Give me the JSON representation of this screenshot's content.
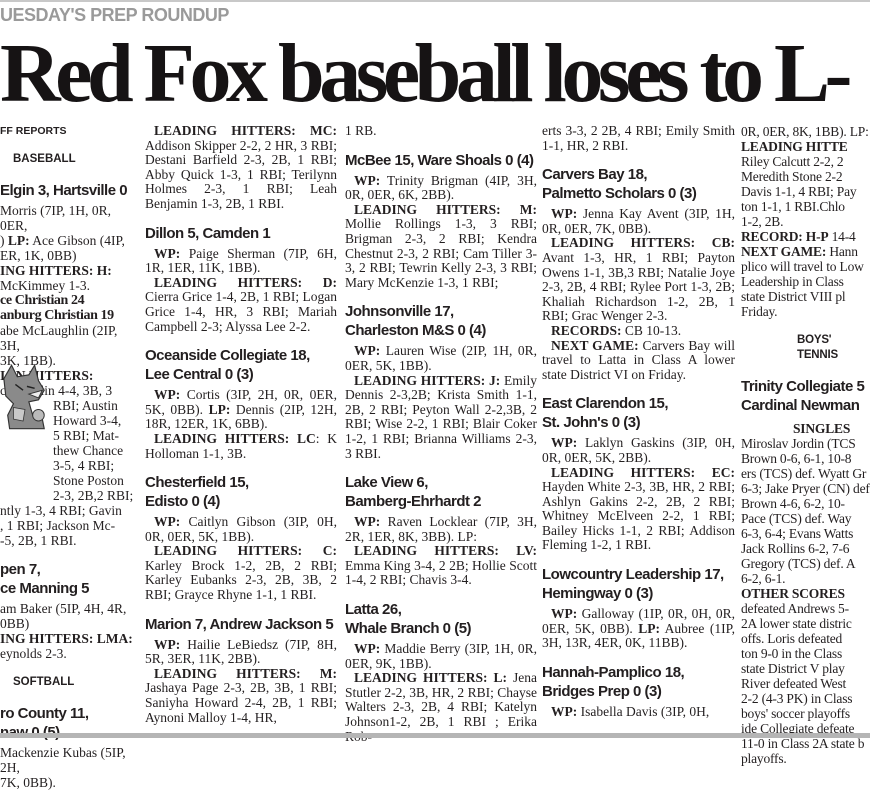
{
  "kicker": "UESDAY'S PREP ROUNDUP",
  "headline": "Red Fox baseball loses to L-",
  "col1": {
    "mascot": "fox-mascot",
    "lines": [
      {
        "kind": "kicker",
        "runs": [
          {
            "t": "FF REPORTS"
          }
        ]
      },
      {
        "kind": "section",
        "runs": [
          {
            "t": "BASEBALL"
          }
        ]
      },
      {
        "kind": "head",
        "runs": [
          {
            "t": "Elgin 3, Hartsville 0"
          }
        ]
      },
      {
        "kind": "text",
        "runs": [
          {
            "t": "Morris (7IP, 1H, 0R, 0ER,"
          }
        ]
      },
      {
        "kind": "text",
        "runs": [
          {
            "t": ") "
          },
          {
            "b": "LP:"
          },
          {
            "t": " Ace Gibson (4IP,"
          }
        ]
      },
      {
        "kind": "text",
        "runs": [
          {
            "t": "ER, 1K, 0BB)"
          }
        ]
      },
      {
        "kind": "text",
        "runs": [
          {
            "b": "ING   HITTERS:   H:"
          }
        ]
      },
      {
        "kind": "text",
        "runs": [
          {
            "t": "McKimmey 1-3."
          }
        ]
      },
      {
        "kind": "head2",
        "runs": [
          {
            "t": "ce Christian 24"
          }
        ]
      },
      {
        "kind": "head2",
        "runs": [
          {
            "t": "anburg Christian 19"
          }
        ]
      },
      {
        "kind": "text",
        "runs": [
          {
            "t": "abe McLaughlin (2IP, 3H,"
          }
        ]
      },
      {
        "kind": "text",
        "runs": [
          {
            "t": "3K, 1BB)."
          }
        ]
      },
      {
        "kind": "text",
        "runs": [
          {
            "b": "IGN         HITTERS:"
          }
        ]
      },
      {
        "kind": "text",
        "runs": [
          {
            "t": "cLaughlin 4-4, 3B, 3"
          }
        ]
      },
      {
        "kind": "fox",
        "runs": [
          {
            "t": "RBI;  Austin"
          }
        ]
      },
      {
        "kind": "fox",
        "runs": [
          {
            "t": "Howard 3-4,"
          }
        ]
      },
      {
        "kind": "fox",
        "runs": [
          {
            "t": "5 RBI; Mat-"
          }
        ]
      },
      {
        "kind": "fox",
        "runs": [
          {
            "t": "thew Chance"
          }
        ]
      },
      {
        "kind": "fox",
        "runs": [
          {
            "t": "3-5,  4  RBI;"
          }
        ]
      },
      {
        "kind": "fox",
        "runs": [
          {
            "t": "Stone Poston"
          }
        ]
      },
      {
        "kind": "fox",
        "runs": [
          {
            "t": "2-3, 2B,2 RBI;"
          }
        ]
      },
      {
        "kind": "text",
        "runs": [
          {
            "t": "ntly 1-3, 4 RBI; Gavin"
          }
        ]
      },
      {
        "kind": "text",
        "runs": [
          {
            "t": ", 1 RBI; Jackson Mc-"
          }
        ]
      },
      {
        "kind": "text",
        "runs": [
          {
            "t": "-5, 2B, 1 RBI."
          }
        ]
      },
      {
        "kind": "head",
        "runs": [
          {
            "t": "pen 7,"
          }
        ]
      },
      {
        "kind": "head",
        "runs": [
          {
            "t": "ce Manning 5"
          }
        ]
      },
      {
        "kind": "text",
        "runs": [
          {
            "t": "am Baker (5IP, 4H, 4R,"
          }
        ]
      },
      {
        "kind": "text",
        "runs": [
          {
            "t": "0BB)"
          }
        ]
      },
      {
        "kind": "text",
        "runs": [
          {
            "b": "ING HITTERS: LMA:"
          }
        ]
      },
      {
        "kind": "text",
        "runs": [
          {
            "t": "eynolds 2-3."
          }
        ]
      },
      {
        "kind": "section",
        "runs": [
          {
            "t": "SOFTBALL"
          }
        ]
      },
      {
        "kind": "head",
        "runs": [
          {
            "t": "ro County 11,"
          }
        ]
      },
      {
        "kind": "head",
        "runs": [
          {
            "t": "naw 0 (5)"
          }
        ]
      },
      {
        "kind": "text",
        "runs": [
          {
            "t": "Mackenzie Kubas (5IP, 2H,"
          }
        ]
      },
      {
        "kind": "text",
        "runs": [
          {
            "t": " 7K, 0BB)."
          }
        ]
      }
    ]
  },
  "columns": [
    {
      "blocks": [
        {
          "type": "p",
          "runs": [
            {
              "b": "LEADING HITTERS: MC:"
            },
            {
              "t": " Addison Skipper 2-2, 2 HR, 3 RBI; Destani Barfield 2-3, 2B, 1 RBI; Abby Quick 1-3, 1 RBI; Terilynn Holmes 2-3, 1 RBI; Leah Benjamin 1-3, 2B, 1 RBI."
            }
          ]
        },
        {
          "type": "head",
          "lines": [
            "Dillon 5, Camden 1"
          ]
        },
        {
          "type": "p",
          "runs": [
            {
              "b": "WP:"
            },
            {
              "t": " Paige Sherman (7IP, 6H, 1R, 1ER, 11K, 1BB)."
            }
          ]
        },
        {
          "type": "p",
          "runs": [
            {
              "b": "LEADING HITTERS: D:"
            },
            {
              "t": " Cierra Grice 1-4, 2B, 1 RBI; Logan Grice 1-4, HR, 3 RBI; Mariah Campbell 2-3; Alyssa Lee 2-2."
            }
          ]
        },
        {
          "type": "head",
          "lines": [
            "Oceanside Collegiate 18,",
            "Lee Central 0 (3)"
          ]
        },
        {
          "type": "p",
          "runs": [
            {
              "b": "WP:"
            },
            {
              "t": " Cortis (3IP, 2H, 0R, 0ER, 5K, 0BB). "
            },
            {
              "b": "LP:"
            },
            {
              "t": " Dennis (2IP, 12H, 18R, 12ER, 1K, 6BB)."
            }
          ]
        },
        {
          "type": "p",
          "runs": [
            {
              "b": "LEADING HITTERS: LC"
            },
            {
              "t": ": K Holloman 1-1, 3B."
            }
          ]
        },
        {
          "type": "head",
          "lines": [
            "Chesterfield 15,",
            "Edisto 0 (4)"
          ]
        },
        {
          "type": "p",
          "runs": [
            {
              "b": "WP:"
            },
            {
              "t": " Caitlyn Gibson (3IP, 0H, 0R, 0ER, 5K, 1BB)."
            }
          ]
        },
        {
          "type": "p",
          "runs": [
            {
              "b": "LEADING HITTERS: C:"
            },
            {
              "t": " Karley Brock 1-2, 2B, 2 RBI; Karley Eubanks 2-3, 2B, 3B, 2 RBI; Grayce Rhyne 1-1, 1 RBI."
            }
          ]
        },
        {
          "type": "head",
          "lines": [
            "Marion 7, Andrew Jackson 5"
          ]
        },
        {
          "type": "p",
          "runs": [
            {
              "b": "WP:"
            },
            {
              "t": " Hailie LeBiedsz (7IP, 8H, 5R, 3ER, 11K, 2BB)."
            }
          ]
        },
        {
          "type": "p",
          "runs": [
            {
              "b": "LEADING HITTERS: M:"
            },
            {
              "t": " Jashaya Page 2-3, 2B, 3B, 1 RBI; Saniyha Howard 2-4, 2B, 1 RBI; Aynoni Malloy 1-4, HR,"
            }
          ]
        }
      ]
    },
    {
      "blocks": [
        {
          "type": "p",
          "cont": true,
          "runs": [
            {
              "t": "1 RB."
            }
          ]
        },
        {
          "type": "head",
          "lines": [
            "McBee 15, Ware Shoals 0 (4)"
          ]
        },
        {
          "type": "p",
          "runs": [
            {
              "b": "WP:"
            },
            {
              "t": " Trinity Brigman (4IP, 3H, 0R, 0ER, 6K, 2BB)."
            }
          ]
        },
        {
          "type": "p",
          "runs": [
            {
              "b": "LEADING HITTERS: M:"
            },
            {
              "t": " Mollie Rollings 1-3, 3 RBI; Brigman 2-3, 2 RBI; Kendra Chestnut 2-3, 2 RBI; Cam Tiller 3-3, 2 RBI; Tewrin Kelly 2-3, 3 RBI; Mary McKenzie 1-3, 1 RBI;"
            }
          ]
        },
        {
          "type": "head",
          "lines": [
            "Johnsonville 17,",
            "Charleston M&S 0 (4)"
          ]
        },
        {
          "type": "p",
          "runs": [
            {
              "b": "WP:"
            },
            {
              "t": " Lauren Wise (2IP, 1H, 0R, 0ER, 5K, 1BB)."
            }
          ]
        },
        {
          "type": "p",
          "runs": [
            {
              "b": "LEADING HITTERS: J:"
            },
            {
              "t": " Emily Dennis 2-3,2B; Krista Smith 1-1, 2B, 2 RBI; Peyton Wall 2-2,3B, 2 RBI; Wise 2-2, 1 RBI; Blair Coker 1-2, 1 RBI; Brianna Williams 2-3, 3 RBI."
            }
          ]
        },
        {
          "type": "head",
          "lines": [
            "Lake View 6,",
            "Bamberg-Ehrhardt 2"
          ]
        },
        {
          "type": "p",
          "runs": [
            {
              "b": "WP:"
            },
            {
              "t": " Raven Locklear (7IP, 3H, 2R, 1ER, 8K, 3BB). LP:"
            }
          ]
        },
        {
          "type": "p",
          "runs": [
            {
              "b": "LEADING HITTERS: LV:"
            },
            {
              "t": " Emma King 3-4, 2 2B; Hollie Scott 1-4, 2 RBI; Chavis 3-4."
            }
          ]
        },
        {
          "type": "head",
          "lines": [
            "Latta 26,",
            "Whale Branch 0 (5)"
          ]
        },
        {
          "type": "p",
          "runs": [
            {
              "b": "WP:"
            },
            {
              "t": " Maddie Berry (3IP, 1H, 0R, 0ER, 9K, 1BB)."
            }
          ]
        },
        {
          "type": "p",
          "runs": [
            {
              "b": "LEADING HITTERS: L:"
            },
            {
              "t": " Jena Stutler 2-2, 3B, HR, 2 RBI; Chayse Walters 2-3, 2B, 4 RBI; Katelyn Johnson1-2, 2B, 1 RBI ; Erika Rob-"
            }
          ]
        }
      ]
    },
    {
      "blocks": [
        {
          "type": "p",
          "cont": true,
          "runs": [
            {
              "t": "erts 3-3, 2 2B, 4 RBI; Emily Smith 1-1, HR, 2 RBI."
            }
          ]
        },
        {
          "type": "head",
          "lines": [
            "Carvers Bay 18,",
            "Palmetto Scholars 0 (3)"
          ]
        },
        {
          "type": "p",
          "runs": [
            {
              "b": "WP:"
            },
            {
              "t": " Jenna Kay Avent (3IP, 1H, 0R, 0ER, 7K, 0BB)."
            }
          ]
        },
        {
          "type": "p",
          "runs": [
            {
              "b": "LEADING HITTERS: CB:"
            },
            {
              "t": " Avant 1-3, HR, 1 RBI; Payton Owens 1-1, 3B,3 RBI; Natalie Joye 2-3, 2B, 4 RBI; Rylee Port 1-3, 2B; Khaliah Richardson 1-2, 2B, 1 RBI; Grac Wenger 2-3."
            }
          ]
        },
        {
          "type": "p",
          "runs": [
            {
              "b": "RECORDS:"
            },
            {
              "t": " CB 10-13."
            }
          ]
        },
        {
          "type": "p",
          "runs": [
            {
              "b": "NEXT GAME:"
            },
            {
              "t": " Carvers Bay will travel to Latta in Class A lower state District VI on Friday."
            }
          ]
        },
        {
          "type": "head",
          "lines": [
            "East Clarendon 15,",
            "St. John's 0 (3)"
          ]
        },
        {
          "type": "p",
          "runs": [
            {
              "b": "WP:"
            },
            {
              "t": " Laklyn Gaskins (3IP, 0H, 0R, 0ER, 5K, 2BB)."
            }
          ]
        },
        {
          "type": "p",
          "runs": [
            {
              "b": "LEADING HITTERS: EC:"
            },
            {
              "t": " Hayden White 2-3, 3B, HR, 2 RBI; Ashlyn Gakins 2-2, 2B, 2 RBI; Whitney McElveen 2-2, 1 RBI; Bailey Hicks 1-1, 2 RBI; Addison Fleming 1-2, 1 RBI."
            }
          ]
        },
        {
          "type": "head",
          "lines": [
            "Lowcountry Leadership 17,",
            "Hemingway 0 (3)"
          ]
        },
        {
          "type": "p",
          "runs": [
            {
              "b": "WP:"
            },
            {
              "t": " Galloway (1IP, 0R, 0H, 0R, 0ER, 5K, 0BB). "
            },
            {
              "b": "LP:"
            },
            {
              "t": " Aubree (1IP, 3H, 13R, 4ER, 0K, 11BB)."
            }
          ]
        },
        {
          "type": "head",
          "lines": [
            "Hannah-Pamplico 18,",
            "Bridges Prep 0 (3)"
          ]
        },
        {
          "type": "p",
          "runs": [
            {
              "b": "WP:"
            },
            {
              "t": " Isabella Davis (3IP, 0H,"
            }
          ]
        }
      ]
    }
  ],
  "col5": {
    "lines": [
      {
        "kind": "text",
        "runs": [
          {
            "t": "0R, 0ER, 8K, 1BB). LP:"
          }
        ]
      },
      {
        "kind": "text",
        "runs": [
          {
            "t": "  "
          },
          {
            "b": "LEADING HITTE"
          }
        ]
      },
      {
        "kind": "text",
        "runs": [
          {
            "t": "Riley Calcutt 2-2, 2"
          }
        ]
      },
      {
        "kind": "text",
        "runs": [
          {
            "t": "Meredith Stone 2-2"
          }
        ]
      },
      {
        "kind": "text",
        "runs": [
          {
            "t": "Davis 1-1, 4 RBI; Pay"
          }
        ]
      },
      {
        "kind": "text",
        "runs": [
          {
            "t": "ton 1-1, 1 RBI.Chlo"
          }
        ]
      },
      {
        "kind": "text",
        "runs": [
          {
            "t": "1-2, 2B."
          }
        ]
      },
      {
        "kind": "text",
        "runs": [
          {
            "t": "  "
          },
          {
            "b": "RECORD: H-P"
          },
          {
            "t": " 14-4"
          }
        ]
      },
      {
        "kind": "text",
        "runs": [
          {
            "t": "  "
          },
          {
            "b": "NEXT GAME:"
          },
          {
            "t": " Hann"
          }
        ]
      },
      {
        "kind": "text",
        "runs": [
          {
            "t": "plico will travel to Low"
          }
        ]
      },
      {
        "kind": "text",
        "runs": [
          {
            "t": "Leadership in Class"
          }
        ]
      },
      {
        "kind": "text",
        "runs": [
          {
            "t": "state District VIII pl"
          }
        ]
      },
      {
        "kind": "text",
        "runs": [
          {
            "t": "Friday."
          }
        ]
      },
      {
        "kind": "section",
        "runs": [
          {
            "t": "BOYS' TENNIS"
          }
        ]
      },
      {
        "kind": "head",
        "runs": [
          {
            "t": "Trinity Collegiate 5"
          }
        ]
      },
      {
        "kind": "head",
        "runs": [
          {
            "t": "Cardinal Newman"
          }
        ]
      },
      {
        "kind": "sub",
        "runs": [
          {
            "t": "SINGLES"
          }
        ]
      },
      {
        "kind": "text",
        "runs": [
          {
            "t": "  Miroslav Jordin (TCS"
          }
        ]
      },
      {
        "kind": "text",
        "runs": [
          {
            "t": "Brown 0-6, 6-1, 10-8"
          }
        ]
      },
      {
        "kind": "text",
        "runs": [
          {
            "t": "ers (TCS) def. Wyatt Gr"
          }
        ]
      },
      {
        "kind": "text",
        "runs": [
          {
            "t": "6-3; Jake Pryer (CN) def"
          }
        ]
      },
      {
        "kind": "text",
        "runs": [
          {
            "t": "Brown 4-6, 6-2, 10-"
          }
        ]
      },
      {
        "kind": "text",
        "runs": [
          {
            "t": "Pace (TCS) def. Way"
          }
        ]
      },
      {
        "kind": "text",
        "runs": [
          {
            "t": "6-3, 6-4; Evans Watts"
          }
        ]
      },
      {
        "kind": "text",
        "runs": [
          {
            "t": "Jack Rollins 6-2, 7-6"
          }
        ]
      },
      {
        "kind": "text",
        "runs": [
          {
            "t": "Gregory (TCS) def. A"
          }
        ]
      },
      {
        "kind": "text",
        "runs": [
          {
            "t": "6-2, 6-1."
          }
        ]
      },
      {
        "kind": "text",
        "runs": [
          {
            "t": "  "
          },
          {
            "b": "OTHER SCORES"
          }
        ]
      },
      {
        "kind": "text",
        "runs": [
          {
            "t": "defeated Andrews 5-"
          }
        ]
      },
      {
        "kind": "text",
        "runs": [
          {
            "t": "2A lower state distric"
          }
        ]
      },
      {
        "kind": "text",
        "runs": [
          {
            "t": "offs. Loris defeated"
          }
        ]
      },
      {
        "kind": "text",
        "runs": [
          {
            "t": "ton 9-0 in the Class"
          }
        ]
      },
      {
        "kind": "text",
        "runs": [
          {
            "t": "state District V play"
          }
        ]
      },
      {
        "kind": "text",
        "runs": [
          {
            "t": "River defeated West"
          }
        ]
      },
      {
        "kind": "text",
        "runs": [
          {
            "t": "2-2 (4-3 PK) in Class"
          }
        ]
      },
      {
        "kind": "text",
        "runs": [
          {
            "t": "boys' soccer playoffs"
          }
        ]
      },
      {
        "kind": "text",
        "runs": [
          {
            "t": "ide Collegiate defeate"
          }
        ]
      },
      {
        "kind": "text",
        "runs": [
          {
            "t": "11-0 in Class 2A state b"
          }
        ]
      },
      {
        "kind": "text",
        "runs": [
          {
            "t": "playoffs."
          }
        ]
      }
    ]
  }
}
